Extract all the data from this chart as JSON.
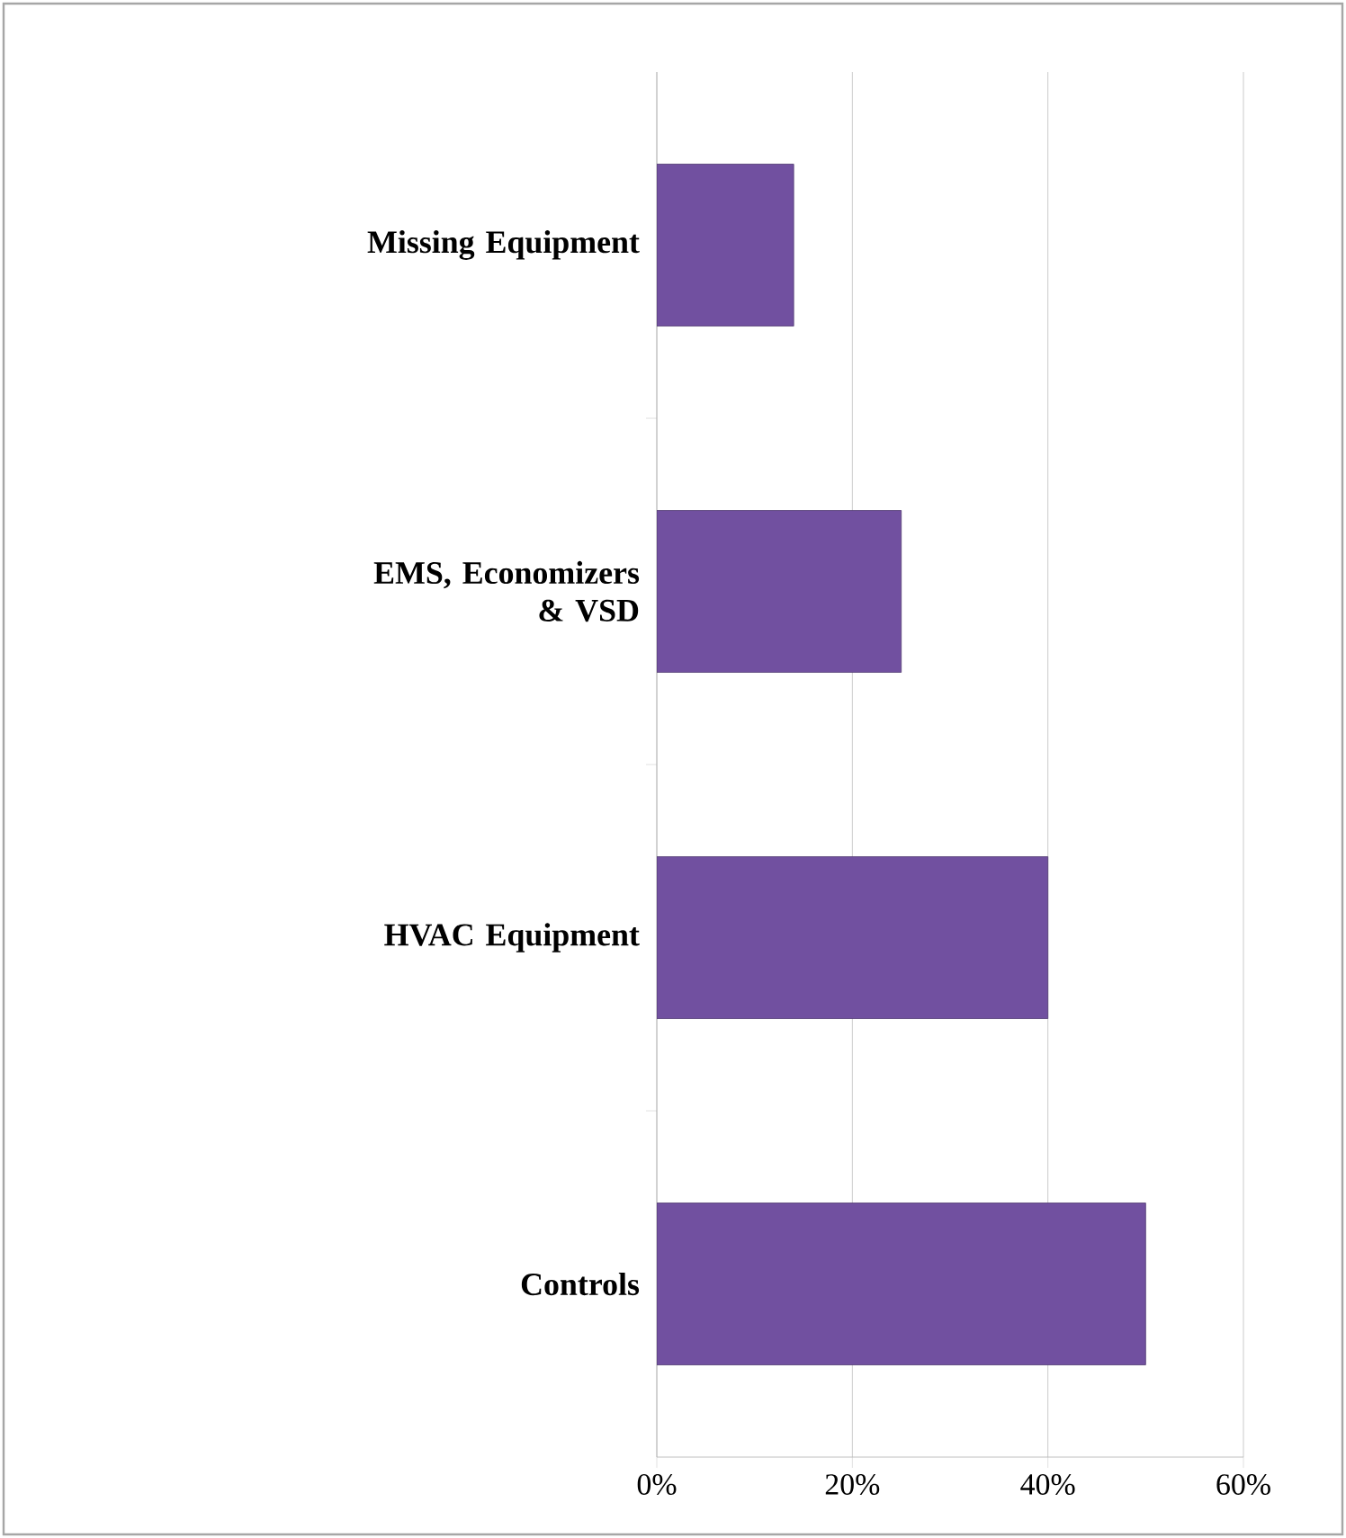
{
  "chart_data": {
    "type": "bar",
    "orientation": "horizontal",
    "categories": [
      "Missing Equipment",
      "EMS, Economizers & VSD",
      "HVAC Equipment",
      "Controls"
    ],
    "values": [
      14,
      25,
      40,
      50
    ],
    "color": "#7150a0",
    "xlim": [
      0,
      60
    ],
    "xticks": [
      {
        "value": 0,
        "label": "0%"
      },
      {
        "value": 20,
        "label": "20%"
      },
      {
        "value": 40,
        "label": "40%"
      },
      {
        "value": 60,
        "label": "60%"
      }
    ],
    "grid": "x"
  }
}
